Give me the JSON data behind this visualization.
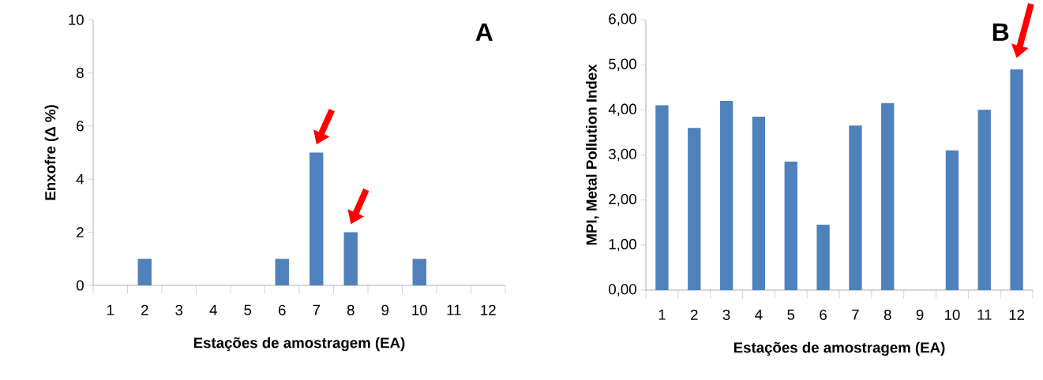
{
  "chart_data": [
    {
      "type": "bar",
      "categories": [
        "1",
        "2",
        "3",
        "4",
        "5",
        "6",
        "7",
        "8",
        "9",
        "10",
        "11",
        "12"
      ],
      "values": [
        0,
        1,
        0,
        0,
        0,
        1,
        5,
        2,
        0,
        1,
        0,
        0
      ],
      "color": "#4f81bd",
      "xlabel": "Estações de amostragem (EA)",
      "ylabel": "Enxofre (Δ %)",
      "ylim": [
        0,
        10
      ],
      "yticks": [
        0,
        2,
        4,
        6,
        8,
        10
      ],
      "annotations": [
        "A"
      ],
      "grid": false
    },
    {
      "type": "bar",
      "categories": [
        "1",
        "2",
        "3",
        "4",
        "5",
        "6",
        "7",
        "8",
        "9",
        "10",
        "11",
        "12"
      ],
      "values": [
        4.1,
        3.6,
        4.2,
        3.85,
        2.85,
        1.45,
        3.65,
        4.15,
        null,
        3.1,
        4.0,
        4.9
      ],
      "color": "#4f81bd",
      "xlabel": "Estações de amostragem (EA)",
      "ylabel": "MPI, Metal Pollution Index",
      "ylim": [
        0,
        6
      ],
      "yticks": [
        {
          "value": 0,
          "label": "0,00"
        },
        {
          "value": 1,
          "label": "1,00"
        },
        {
          "value": 2,
          "label": "2,00"
        },
        {
          "value": 3,
          "label": "3,00"
        },
        {
          "value": 4,
          "label": "4,00"
        },
        {
          "value": 5,
          "label": "5,00"
        },
        {
          "value": 6,
          "label": "6,00"
        }
      ],
      "annotations": [
        "B"
      ],
      "grid": false
    }
  ]
}
